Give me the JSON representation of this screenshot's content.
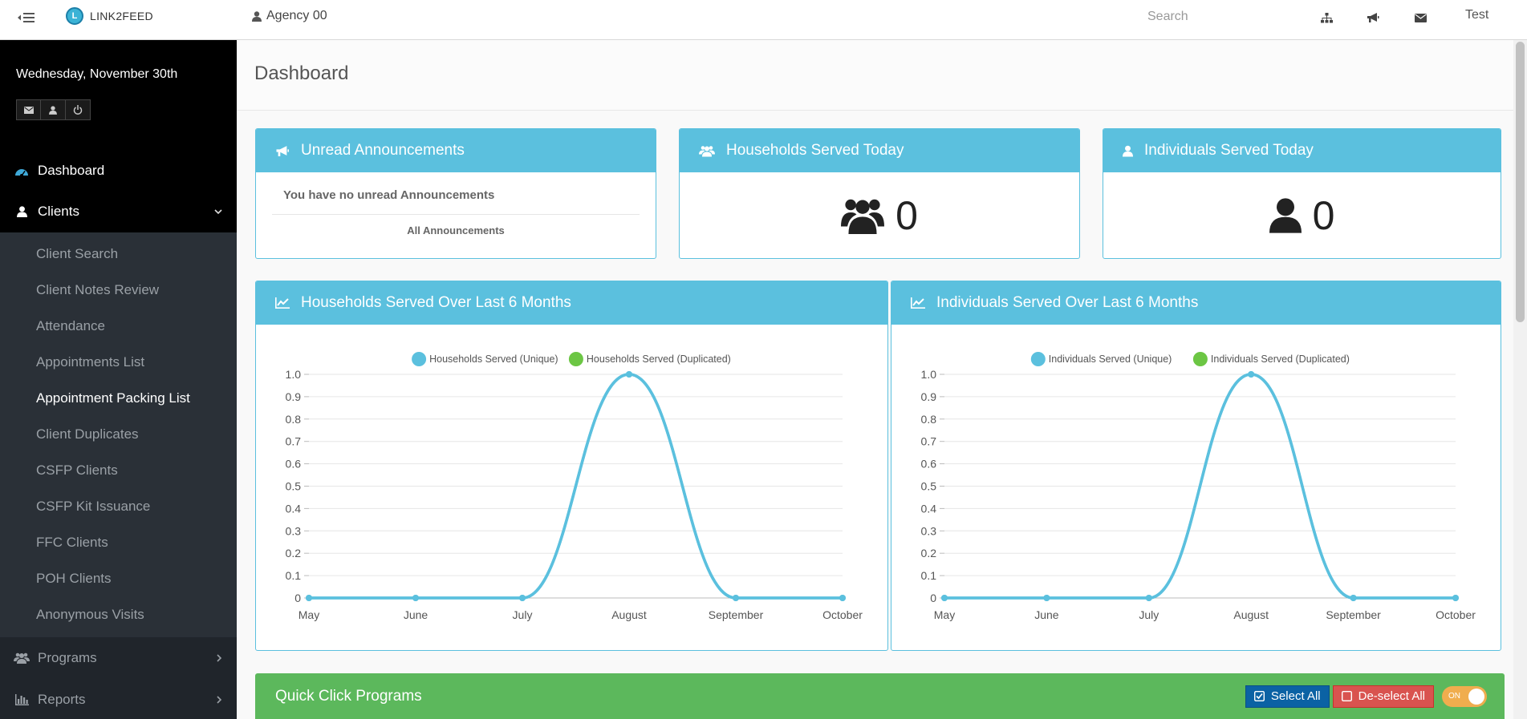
{
  "topbar": {
    "brand": "LINK2FEED",
    "agency": "Agency 00",
    "search_placeholder": "Search",
    "user": "Test",
    "icons": [
      "sitemap-icon",
      "bullhorn-icon",
      "envelope-icon"
    ]
  },
  "sidebar": {
    "date": "Wednesday, November 30th",
    "nav": {
      "dashboard": "Dashboard",
      "clients": "Clients",
      "programs": "Programs",
      "reports": "Reports"
    },
    "client_items": [
      "Client Search",
      "Client Notes Review",
      "Attendance",
      "Appointments List",
      "Appointment Packing List",
      "Client Duplicates",
      "CSFP Clients",
      "CSFP Kit Issuance",
      "FFC Clients",
      "POH Clients",
      "Anonymous Visits"
    ],
    "hovered_item": "Appointment Packing List"
  },
  "page": {
    "title": "Dashboard"
  },
  "announcements": {
    "title": "Unread Announcements",
    "message": "You have no unread Announcements",
    "link": "All Announcements"
  },
  "households_today": {
    "title": "Households Served Today",
    "value": "0"
  },
  "individuals_today": {
    "title": "Individuals Served Today",
    "value": "0"
  },
  "chart_data": [
    {
      "type": "line",
      "title": "Households Served Over Last 6 Months",
      "categories": [
        "May",
        "June",
        "July",
        "August",
        "September",
        "October"
      ],
      "series": [
        {
          "name": "Households Served (Unique)",
          "values": [
            0,
            0,
            0,
            1,
            0,
            0
          ],
          "color": "#5bc0de"
        },
        {
          "name": "Households Served (Duplicated)",
          "values": [
            0,
            0,
            0,
            1,
            0,
            0
          ],
          "color": "#6cc644"
        }
      ],
      "ylim": [
        0,
        1.0
      ],
      "yticks": [
        "0",
        "0.1",
        "0.2",
        "0.3",
        "0.4",
        "0.5",
        "0.6",
        "0.7",
        "0.8",
        "0.9",
        "1.0"
      ],
      "grid": true,
      "legend": "top"
    },
    {
      "type": "line",
      "title": "Individuals Served Over Last 6 Months",
      "categories": [
        "May",
        "June",
        "July",
        "August",
        "September",
        "October"
      ],
      "series": [
        {
          "name": "Individuals Served (Unique)",
          "values": [
            0,
            0,
            0,
            1,
            0,
            0
          ],
          "color": "#5bc0de"
        },
        {
          "name": "Individuals Served (Duplicated)",
          "values": [
            0,
            0,
            0,
            1,
            0,
            0
          ],
          "color": "#6cc644"
        }
      ],
      "ylim": [
        0,
        1.0
      ],
      "yticks": [
        "0",
        "0.1",
        "0.2",
        "0.3",
        "0.4",
        "0.5",
        "0.6",
        "0.7",
        "0.8",
        "0.9",
        "1.0"
      ],
      "grid": true,
      "legend": "top"
    }
  ],
  "quick_click": {
    "title": "Quick Click Programs",
    "select_all": "Select All",
    "deselect_all": "De-select All",
    "toggle_label": "ON"
  },
  "colors": {
    "accent": "#5bc0de",
    "success": "#5cb85c",
    "sidebar": "#20252b",
    "primary_button": "#0b62a4",
    "danger_button": "#d9534f",
    "toggle": "#f0ad4e"
  }
}
